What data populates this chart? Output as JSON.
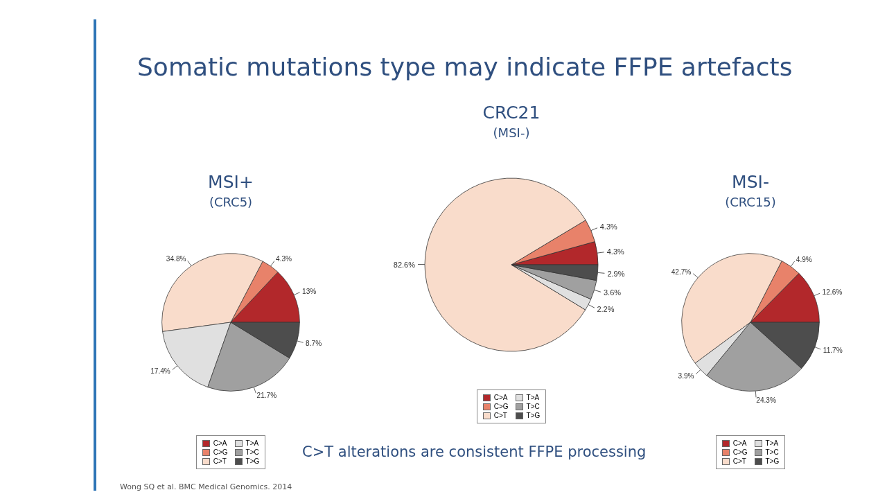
{
  "chart_data": [
    {
      "type": "pie",
      "title": "MSI+",
      "subtitle": "(CRC5)",
      "categories": [
        "C>A",
        "C>G",
        "C>T",
        "T>A",
        "T>C",
        "T>G"
      ],
      "values": [
        13,
        4.3,
        34.8,
        17.4,
        21.7,
        8.7
      ],
      "value_labels": [
        "13%",
        "4.3%",
        "34.8%",
        "17.4%",
        "21.7%",
        "8.7%"
      ],
      "colors": [
        "#b2282b",
        "#e8826a",
        "#f9dccb",
        "#e0e0e0",
        "#a0a0a0",
        "#4d4d4d"
      ],
      "legend": "bottom",
      "annotations": [
        "Somatic mutations type may indicate FFPE artefacts",
        "C>T alterations are consistent FFPE processing",
        "Wong SQ et al. BMC Medical Genomics. 2014"
      ]
    },
    {
      "type": "pie",
      "title": "CRC21",
      "subtitle": "(MSI-)",
      "categories": [
        "C>A",
        "C>G",
        "C>T",
        "T>A",
        "T>C",
        "T>G"
      ],
      "values": [
        4.3,
        4.3,
        82.6,
        2.2,
        3.6,
        2.9
      ],
      "value_labels": [
        "4.3%",
        "4.3%",
        "82.6%",
        "2.2%",
        "3.6%",
        "2.9%"
      ],
      "colors": [
        "#b2282b",
        "#e8826a",
        "#f9dccb",
        "#e0e0e0",
        "#a0a0a0",
        "#4d4d4d"
      ],
      "legend": "bottom"
    },
    {
      "type": "pie",
      "title": "MSI-",
      "subtitle": "(CRC15)",
      "categories": [
        "C>A",
        "C>G",
        "C>T",
        "T>A",
        "T>C",
        "T>G"
      ],
      "values": [
        12.6,
        4.9,
        42.7,
        3.9,
        24.3,
        11.7
      ],
      "value_labels": [
        "12.6%",
        "4.9%",
        "42.7%",
        "3.9%",
        "24.3%",
        "11.7%"
      ],
      "colors": [
        "#b2282b",
        "#e8826a",
        "#f9dccb",
        "#e0e0e0",
        "#a0a0a0",
        "#4d4d4d"
      ],
      "legend": "bottom"
    }
  ]
}
